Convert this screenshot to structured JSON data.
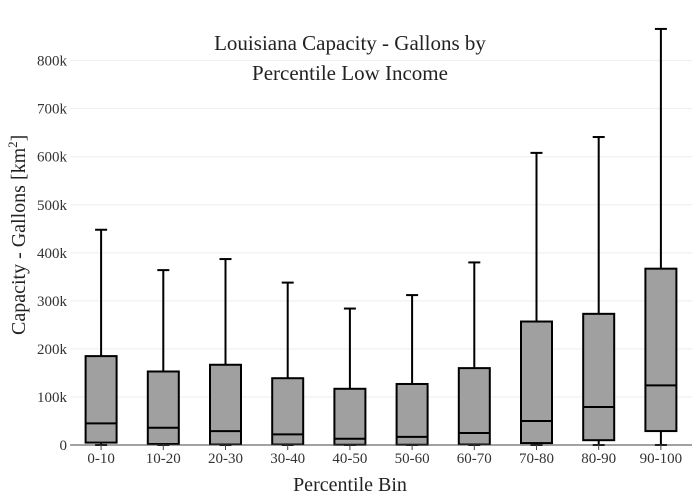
{
  "chart_data": {
    "type": "box",
    "title_line1": "Louisiana Capacity - Gallons by",
    "title_line2": "Percentile Low Income",
    "xlabel": "Percentile Bin",
    "ylabel_text": "Capacity - Gallons  [km",
    "ylabel_sup": "2",
    "ylabel_close": "]",
    "ylim": [
      0,
      870000
    ],
    "y_ticks": [
      0,
      100000,
      200000,
      300000,
      400000,
      500000,
      600000,
      700000,
      800000
    ],
    "y_tick_labels": [
      "0",
      "100k",
      "200k",
      "300k",
      "400k",
      "500k",
      "600k",
      "700k",
      "800k"
    ],
    "grid": true,
    "box_color": "#a0a0a0",
    "categories": [
      "0-10",
      "10-20",
      "20-30",
      "30-40",
      "40-50",
      "50-60",
      "60-70",
      "70-80",
      "80-90",
      "90-100"
    ],
    "boxes": [
      {
        "min": 0,
        "q1": 5000,
        "median": 45000,
        "q3": 185000,
        "max": 448000
      },
      {
        "min": 0,
        "q1": 2000,
        "median": 36000,
        "q3": 153000,
        "max": 364000
      },
      {
        "min": 0,
        "q1": 1000,
        "median": 29000,
        "q3": 167000,
        "max": 387000
      },
      {
        "min": 0,
        "q1": 1000,
        "median": 22000,
        "q3": 139000,
        "max": 338000
      },
      {
        "min": 0,
        "q1": 500,
        "median": 13000,
        "q3": 117000,
        "max": 284000
      },
      {
        "min": 0,
        "q1": 500,
        "median": 17000,
        "q3": 127000,
        "max": 312000
      },
      {
        "min": 0,
        "q1": 1000,
        "median": 25000,
        "q3": 160000,
        "max": 380000
      },
      {
        "min": 0,
        "q1": 4000,
        "median": 50000,
        "q3": 257000,
        "max": 608000
      },
      {
        "min": 0,
        "q1": 10000,
        "median": 79000,
        "q3": 273000,
        "max": 641000
      },
      {
        "min": 0,
        "q1": 29000,
        "median": 124000,
        "q3": 367000,
        "max": 866000
      }
    ]
  }
}
